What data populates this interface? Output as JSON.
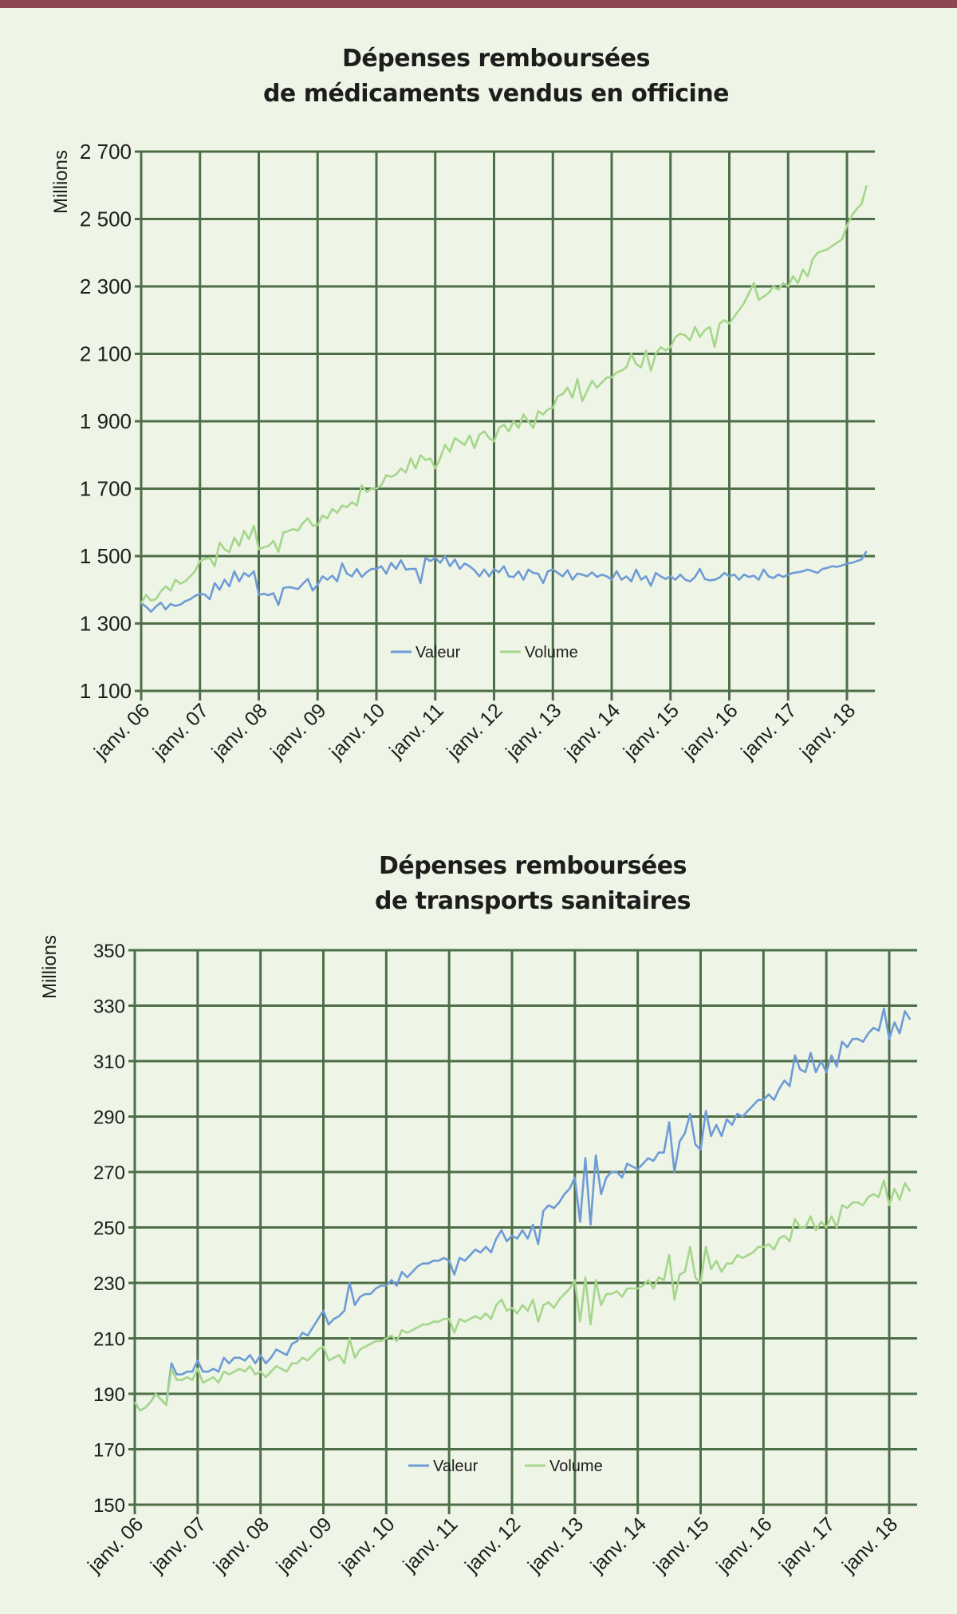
{
  "colors": {
    "top_bar": "#8d4753",
    "grid": "#4e6e47",
    "valeur": "#6e9bd6",
    "volume": "#a5d68b",
    "background": "#eef5e7"
  },
  "chart_data": [
    {
      "type": "line",
      "title": [
        "Dépenses remboursées",
        "de médicaments vendus en officine"
      ],
      "ylabel": "Millions",
      "xlabel": "",
      "ylim": [
        1100,
        2700
      ],
      "yticks": [
        1100,
        1300,
        1500,
        1700,
        1900,
        2100,
        2300,
        2500,
        2700
      ],
      "ytick_labels": [
        "1 100",
        "1 300",
        "1 500",
        "1 700",
        "1 900",
        "2 100",
        "2 300",
        "2 500",
        "2 700"
      ],
      "x_frequency": "monthly",
      "x_start": "janv. 06",
      "xtick_labels": [
        "janv. 06",
        "janv. 07",
        "janv. 08",
        "janv. 09",
        "janv. 10",
        "janv. 11",
        "janv. 12",
        "janv. 13",
        "janv. 14",
        "janv. 15",
        "janv. 16",
        "janv. 17",
        "janv. 18"
      ],
      "grid": true,
      "legend_position": "bottom-center",
      "series": [
        {
          "name": "Valeur",
          "color": "#6e9bd6",
          "values": [
            1360,
            1350,
            1335,
            1350,
            1362,
            1342,
            1358,
            1352,
            1356,
            1366,
            1372,
            1382,
            1388,
            1386,
            1372,
            1420,
            1400,
            1430,
            1410,
            1455,
            1425,
            1450,
            1440,
            1455,
            1385,
            1388,
            1384,
            1390,
            1355,
            1405,
            1408,
            1406,
            1402,
            1418,
            1432,
            1398,
            1415,
            1440,
            1430,
            1442,
            1425,
            1478,
            1448,
            1440,
            1462,
            1438,
            1452,
            1462,
            1462,
            1470,
            1448,
            1480,
            1462,
            1488,
            1460,
            1462,
            1462,
            1420,
            1495,
            1485,
            1495,
            1480,
            1500,
            1470,
            1490,
            1462,
            1478,
            1470,
            1458,
            1440,
            1460,
            1440,
            1462,
            1452,
            1470,
            1440,
            1438,
            1455,
            1430,
            1460,
            1450,
            1448,
            1420,
            1455,
            1460,
            1450,
            1440,
            1458,
            1430,
            1448,
            1445,
            1440,
            1452,
            1438,
            1445,
            1440,
            1430,
            1455,
            1430,
            1440,
            1425,
            1460,
            1430,
            1440,
            1412,
            1450,
            1440,
            1432,
            1440,
            1430,
            1445,
            1430,
            1425,
            1438,
            1462,
            1432,
            1428,
            1430,
            1436,
            1450,
            1440,
            1445,
            1430,
            1445,
            1438,
            1442,
            1430,
            1460,
            1440,
            1435,
            1445,
            1438,
            1445,
            1450,
            1452,
            1455,
            1460,
            1455,
            1450,
            1462,
            1465,
            1470,
            1468,
            1472,
            1478,
            1480,
            1485,
            1490,
            1515
          ]
        },
        {
          "name": "Volume",
          "color": "#a5d68b",
          "values": [
            1360,
            1385,
            1368,
            1372,
            1395,
            1410,
            1398,
            1430,
            1418,
            1425,
            1440,
            1455,
            1485,
            1492,
            1495,
            1470,
            1540,
            1520,
            1512,
            1555,
            1530,
            1575,
            1550,
            1590,
            1520,
            1526,
            1530,
            1545,
            1512,
            1570,
            1574,
            1580,
            1576,
            1598,
            1612,
            1590,
            1592,
            1620,
            1612,
            1640,
            1628,
            1650,
            1645,
            1660,
            1650,
            1710,
            1690,
            1700,
            1700,
            1710,
            1740,
            1735,
            1742,
            1760,
            1748,
            1790,
            1760,
            1800,
            1785,
            1790,
            1760,
            1790,
            1830,
            1810,
            1850,
            1840,
            1830,
            1858,
            1820,
            1860,
            1870,
            1850,
            1840,
            1880,
            1890,
            1870,
            1900,
            1880,
            1920,
            1900,
            1880,
            1930,
            1920,
            1935,
            1940,
            1975,
            1980,
            2000,
            1970,
            2025,
            1960,
            1990,
            2020,
            2000,
            2015,
            2030,
            2030,
            2045,
            2050,
            2060,
            2100,
            2070,
            2060,
            2110,
            2050,
            2100,
            2120,
            2110,
            2120,
            2150,
            2160,
            2155,
            2140,
            2180,
            2150,
            2170,
            2180,
            2120,
            2190,
            2200,
            2190,
            2210,
            2230,
            2250,
            2280,
            2310,
            2260,
            2270,
            2280,
            2300,
            2290,
            2310,
            2300,
            2330,
            2310,
            2350,
            2330,
            2380,
            2400,
            2405,
            2410,
            2420,
            2430,
            2440,
            2480,
            2510,
            2530,
            2545,
            2600
          ]
        }
      ]
    },
    {
      "type": "line",
      "title": [
        "Dépenses remboursées",
        "de transports sanitaires"
      ],
      "ylabel": "Millions",
      "xlabel": "",
      "ylim": [
        150,
        350
      ],
      "yticks": [
        150,
        170,
        190,
        210,
        230,
        250,
        270,
        290,
        310,
        330,
        350
      ],
      "ytick_labels": [
        "150",
        "170",
        "190",
        "210",
        "230",
        "250",
        "270",
        "290",
        "310",
        "330",
        "350"
      ],
      "x_frequency": "monthly",
      "x_start": "janv. 06",
      "xtick_labels": [
        "janv. 06",
        "janv. 07",
        "janv. 08",
        "janv. 09",
        "janv. 10",
        "janv. 11",
        "janv. 12",
        "janv. 13",
        "janv. 14",
        "janv. 15",
        "janv. 16",
        "janv. 17",
        "janv. 18"
      ],
      "grid": true,
      "legend_position": "bottom-center",
      "series": [
        {
          "name": "Valeur",
          "color": "#6e9bd6",
          "values": [
            187,
            184,
            185,
            187,
            190,
            188,
            186,
            201,
            197,
            197,
            198,
            198,
            202,
            198,
            198,
            199,
            198,
            203,
            201,
            203,
            203,
            202,
            204,
            201,
            204,
            201,
            203,
            206,
            205,
            204,
            208,
            209,
            212,
            211,
            214,
            217,
            220,
            215,
            217,
            218,
            220,
            230,
            222,
            225,
            226,
            226,
            228,
            229,
            229,
            231,
            229,
            234,
            232,
            234,
            236,
            237,
            237,
            238,
            238,
            239,
            238,
            233,
            239,
            238,
            240,
            242,
            241,
            243,
            241,
            246,
            249,
            245,
            247,
            246,
            249,
            246,
            251,
            244,
            256,
            258,
            257,
            259,
            262,
            264,
            268,
            252,
            275,
            251,
            276,
            262,
            268,
            270,
            270,
            268,
            273,
            272,
            271,
            273,
            275,
            274,
            277,
            277,
            288,
            270,
            281,
            284,
            291,
            280,
            278,
            292,
            283,
            287,
            283,
            289,
            287,
            291,
            290,
            292,
            294,
            296,
            296,
            298,
            296,
            300,
            303,
            301,
            312,
            307,
            306,
            313,
            306,
            310,
            306,
            312,
            308,
            317,
            315,
            318,
            318,
            317,
            320,
            322,
            321,
            329,
            318,
            324,
            320,
            328,
            325
          ]
        },
        {
          "name": "Volume",
          "color": "#a5d68b",
          "values": [
            187,
            184,
            185,
            187,
            190,
            188,
            186,
            199,
            195,
            195,
            196,
            195,
            199,
            194,
            195,
            196,
            194,
            198,
            197,
            198,
            199,
            198,
            200,
            197,
            198,
            196,
            198,
            200,
            199,
            198,
            201,
            201,
            203,
            202,
            204,
            206,
            207,
            202,
            203,
            204,
            201,
            210,
            203,
            206,
            207,
            208,
            209,
            209,
            210,
            211,
            209,
            213,
            212,
            213,
            214,
            215,
            215,
            216,
            216,
            217,
            217,
            212,
            217,
            216,
            217,
            218,
            217,
            219,
            217,
            222,
            224,
            220,
            221,
            219,
            222,
            220,
            224,
            216,
            222,
            223,
            221,
            224,
            226,
            228,
            231,
            216,
            232,
            215,
            231,
            222,
            226,
            226,
            227,
            225,
            228,
            228,
            228,
            229,
            231,
            228,
            232,
            231,
            240,
            224,
            233,
            234,
            243,
            232,
            230,
            243,
            235,
            238,
            234,
            237,
            237,
            240,
            239,
            240,
            241,
            243,
            243,
            244,
            242,
            246,
            247,
            245,
            253,
            250,
            250,
            254,
            249,
            252,
            250,
            254,
            250,
            258,
            257,
            259,
            259,
            258,
            261,
            262,
            261,
            267,
            258,
            264,
            260,
            266,
            263
          ]
        }
      ]
    }
  ]
}
